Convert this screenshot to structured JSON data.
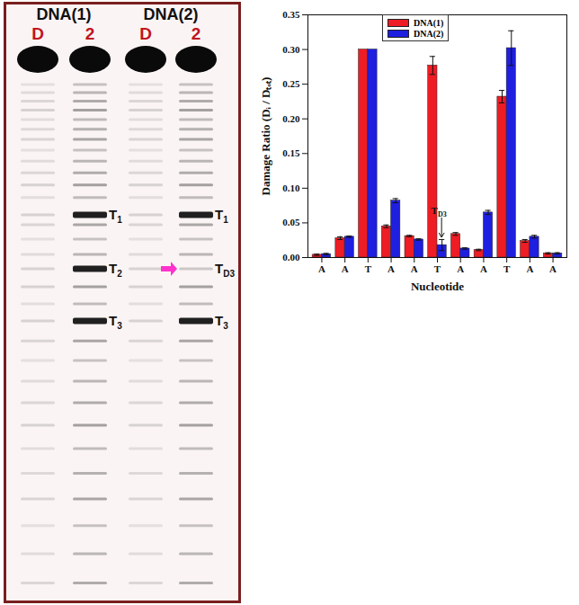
{
  "chart_data": {
    "type": "bar",
    "categories": [
      "A",
      "A",
      "T",
      "A",
      "A",
      "T",
      "A",
      "A",
      "T",
      "A",
      "A"
    ],
    "x_label": "Nucleotide",
    "y_label": "Damage Ratio (Dᵢ / Dₜₒₜ)",
    "ylim": [
      0,
      0.35
    ],
    "yticks": [
      {
        "value": 0,
        "label": "0.00"
      },
      {
        "value": 0.05,
        "label": "0.05"
      },
      {
        "value": 0.1,
        "label": "0.10"
      },
      {
        "value": 0.15,
        "label": "0.15"
      },
      {
        "value": 0.2,
        "label": "0.20"
      },
      {
        "value": 0.25,
        "label": "0.25"
      },
      {
        "value": 0.3,
        "label": "0.30"
      },
      {
        "value": 0.35,
        "label": "0.35"
      }
    ],
    "legend": "top",
    "series": [
      {
        "name": "DNA(1)",
        "color": "#ee1c24",
        "values": [
          0.004,
          0.028,
          0.3,
          0.045,
          0.031,
          0.277,
          0.034,
          0.011,
          0.232,
          0.024,
          0.006
        ],
        "errors": [
          0.001,
          0.002,
          0,
          0.002,
          0.001,
          0.013,
          0.002,
          0.001,
          0.009,
          0.002,
          0.001
        ]
      },
      {
        "name": "DNA(2)",
        "color": "#1f1fe0",
        "values": [
          0.005,
          0.03,
          0.3,
          0.082,
          0.026,
          0.018,
          0.013,
          0.065,
          0.302,
          0.03,
          0.006
        ],
        "errors": [
          0.001,
          0.001,
          0,
          0.003,
          0.001,
          0.008,
          0.001,
          0.003,
          0.025,
          0.002,
          0.001
        ]
      }
    ],
    "annotations": [
      {
        "text": "T",
        "subscript": "D3",
        "index": 5,
        "series": "DNA(2)"
      }
    ]
  },
  "gel": {
    "groups": [
      "DNA(1)",
      "DNA(2)"
    ],
    "lanes": [
      "D",
      "2",
      "D",
      "2"
    ],
    "band_labels": [
      [],
      [
        {
          "text": "T",
          "subscript": "1"
        },
        {
          "text": "T",
          "subscript": "2"
        },
        {
          "text": "T",
          "subscript": "3"
        }
      ],
      [],
      [
        {
          "text": "T",
          "subscript": "1"
        },
        {
          "text": "T",
          "subscript": "D3"
        },
        {
          "text": "T",
          "subscript": "3"
        }
      ]
    ]
  }
}
